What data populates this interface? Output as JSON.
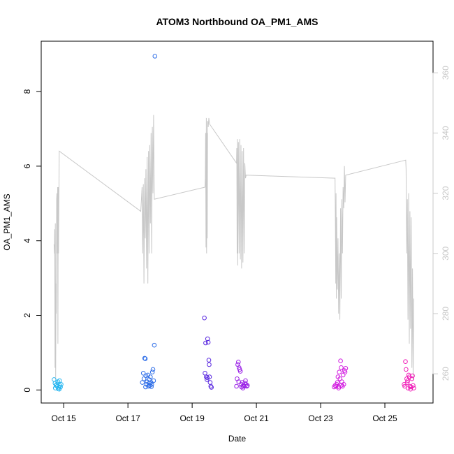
{
  "chart_data": {
    "type": "scatter",
    "title": "ATOM3 Northbound OA_PM1_AMS",
    "xlabel": "Date",
    "ylabel": "OA_PM1_AMS",
    "xlim": [
      14.3,
      26.5
    ],
    "ylim": [
      -0.35,
      9.35
    ],
    "y2lim": [
      250.3,
      370.5
    ],
    "x_ticks": [
      {
        "value": 15,
        "label": "Oct 15"
      },
      {
        "value": 17,
        "label": "Oct 17"
      },
      {
        "value": 19,
        "label": "Oct 19"
      },
      {
        "value": 21,
        "label": "Oct 21"
      },
      {
        "value": 23,
        "label": "Oct 23"
      },
      {
        "value": 25,
        "label": "Oct 25"
      }
    ],
    "y_ticks": [
      0,
      2,
      4,
      6,
      8
    ],
    "y2_ticks": [
      260,
      280,
      300,
      320,
      340,
      360
    ],
    "grid": false,
    "legend": "none",
    "colors": {
      "oct15": "#27b6f0",
      "oct17": "#2f6ee8",
      "oct19": "#5b2ae0",
      "oct20": "#9a22e6",
      "oct23": "#d21ee0",
      "oct25": "#f01eb8",
      "line": "#c8c8c8"
    },
    "series": [
      {
        "color_key": "oct15",
        "points": [
          [
            14.7,
            0.28
          ],
          [
            14.74,
            0.05
          ],
          [
            14.76,
            0.12
          ],
          [
            14.78,
            0.15
          ],
          [
            14.8,
            0.1
          ],
          [
            14.82,
            0.22
          ],
          [
            14.83,
            0.03
          ],
          [
            14.85,
            0.07
          ],
          [
            14.87,
            0.25
          ],
          [
            14.88,
            0.12
          ],
          [
            14.9,
            0.08
          ],
          [
            14.92,
            0.15
          ],
          [
            14.73,
            0.18
          ],
          [
            14.86,
            0.02
          ]
        ]
      },
      {
        "color_key": "oct17",
        "points": [
          [
            17.45,
            0.2
          ],
          [
            17.48,
            0.45
          ],
          [
            17.5,
            0.3
          ],
          [
            17.52,
            0.85
          ],
          [
            17.54,
            0.84
          ],
          [
            17.56,
            0.38
          ],
          [
            17.58,
            0.15
          ],
          [
            17.6,
            0.22
          ],
          [
            17.62,
            0.4
          ],
          [
            17.64,
            0.1
          ],
          [
            17.66,
            0.28
          ],
          [
            17.68,
            0.12
          ],
          [
            17.7,
            0.35
          ],
          [
            17.72,
            0.2
          ],
          [
            17.74,
            0.15
          ],
          [
            17.76,
            0.48
          ],
          [
            17.78,
            0.55
          ],
          [
            17.8,
            0.25
          ],
          [
            17.82,
            1.2
          ],
          [
            17.84,
            8.95
          ],
          [
            17.55,
            0.08
          ],
          [
            17.73,
            0.09
          ],
          [
            17.67,
            0.18
          ]
        ]
      },
      {
        "color_key": "oct19",
        "points": [
          [
            19.38,
            1.93
          ],
          [
            19.4,
            0.45
          ],
          [
            19.42,
            1.26
          ],
          [
            19.44,
            0.35
          ],
          [
            19.46,
            0.28
          ],
          [
            19.48,
            1.37
          ],
          [
            19.5,
            1.28
          ],
          [
            19.52,
            0.8
          ],
          [
            19.53,
            0.68
          ],
          [
            19.54,
            0.35
          ],
          [
            19.56,
            0.2
          ],
          [
            19.58,
            0.1
          ],
          [
            19.6,
            0.07
          ],
          [
            19.47,
            0.33
          ]
        ]
      },
      {
        "color_key": "oct20",
        "points": [
          [
            20.38,
            0.1
          ],
          [
            20.4,
            0.3
          ],
          [
            20.42,
            0.68
          ],
          [
            20.44,
            0.75
          ],
          [
            20.46,
            0.6
          ],
          [
            20.48,
            0.55
          ],
          [
            20.5,
            0.5
          ],
          [
            20.52,
            0.15
          ],
          [
            20.54,
            0.08
          ],
          [
            20.56,
            0.2
          ],
          [
            20.58,
            0.05
          ],
          [
            20.6,
            0.12
          ],
          [
            20.62,
            0.1
          ],
          [
            20.64,
            0.18
          ],
          [
            20.66,
            0.25
          ],
          [
            20.68,
            0.15
          ],
          [
            20.7,
            0.1
          ],
          [
            20.72,
            0.12
          ],
          [
            20.45,
            0.22
          ]
        ]
      },
      {
        "color_key": "oct23",
        "points": [
          [
            23.42,
            0.08
          ],
          [
            23.45,
            0.12
          ],
          [
            23.48,
            0.1
          ],
          [
            23.5,
            0.15
          ],
          [
            23.52,
            0.2
          ],
          [
            23.54,
            0.35
          ],
          [
            23.56,
            0.05
          ],
          [
            23.58,
            0.48
          ],
          [
            23.6,
            0.3
          ],
          [
            23.62,
            0.78
          ],
          [
            23.64,
            0.6
          ],
          [
            23.66,
            0.22
          ],
          [
            23.68,
            0.1
          ],
          [
            23.7,
            0.4
          ],
          [
            23.72,
            0.15
          ],
          [
            23.74,
            0.52
          ],
          [
            23.76,
            0.48
          ],
          [
            23.78,
            0.58
          ],
          [
            23.55,
            0.09
          ],
          [
            23.65,
            0.13
          ]
        ]
      },
      {
        "color_key": "oct25",
        "points": [
          [
            25.6,
            0.15
          ],
          [
            25.62,
            0.1
          ],
          [
            25.64,
            0.76
          ],
          [
            25.66,
            0.55
          ],
          [
            25.68,
            0.3
          ],
          [
            25.7,
            0.2
          ],
          [
            25.72,
            0.05
          ],
          [
            25.74,
            0.4
          ],
          [
            25.76,
            0.35
          ],
          [
            25.78,
            0.1
          ],
          [
            25.8,
            0.02
          ],
          [
            25.82,
            0.08
          ],
          [
            25.84,
            0.3
          ],
          [
            25.86,
            0.38
          ],
          [
            25.88,
            0.12
          ],
          [
            25.9,
            0.05
          ],
          [
            25.71,
            0.25
          ]
        ]
      }
    ],
    "secondary_line": {
      "axis": "right",
      "points": [
        [
          14.7,
          303
        ],
        [
          14.71,
          300
        ],
        [
          14.72,
          308
        ],
        [
          14.73,
          262
        ],
        [
          14.74,
          310
        ],
        [
          14.75,
          258
        ],
        [
          14.76,
          290
        ],
        [
          14.77,
          280
        ],
        [
          14.78,
          318
        ],
        [
          14.79,
          320
        ],
        [
          14.8,
          300
        ],
        [
          14.81,
          322
        ],
        [
          14.82,
          270
        ],
        [
          14.83,
          322
        ],
        [
          14.84,
          300
        ],
        [
          14.86,
          334
        ],
        [
          17.4,
          314
        ],
        [
          17.42,
          318
        ],
        [
          17.44,
          322
        ],
        [
          17.46,
          300
        ],
        [
          17.48,
          323
        ],
        [
          17.5,
          290
        ],
        [
          17.52,
          325
        ],
        [
          17.54,
          305
        ],
        [
          17.56,
          328
        ],
        [
          17.58,
          295
        ],
        [
          17.6,
          332
        ],
        [
          17.62,
          290
        ],
        [
          17.64,
          334
        ],
        [
          17.66,
          300
        ],
        [
          17.68,
          336
        ],
        [
          17.7,
          310
        ],
        [
          17.72,
          340
        ],
        [
          17.74,
          300
        ],
        [
          17.76,
          342
        ],
        [
          17.78,
          320
        ],
        [
          17.8,
          346
        ],
        [
          17.82,
          318
        ],
        [
          19.4,
          322
        ],
        [
          19.41,
          325
        ],
        [
          19.42,
          340
        ],
        [
          19.43,
          302
        ],
        [
          19.44,
          345
        ],
        [
          19.45,
          300
        ],
        [
          19.46,
          340
        ],
        [
          19.47,
          305
        ],
        [
          19.48,
          344
        ],
        [
          19.5,
          342
        ],
        [
          19.52,
          345
        ],
        [
          19.54,
          343
        ],
        [
          20.38,
          330
        ],
        [
          20.39,
          335
        ],
        [
          20.4,
          300
        ],
        [
          20.41,
          338
        ],
        [
          20.42,
          296
        ],
        [
          20.44,
          337
        ],
        [
          20.46,
          300
        ],
        [
          20.48,
          338
        ],
        [
          20.5,
          298
        ],
        [
          20.52,
          336
        ],
        [
          20.54,
          295
        ],
        [
          20.56,
          334
        ],
        [
          20.58,
          297
        ],
        [
          20.6,
          335
        ],
        [
          20.62,
          300
        ],
        [
          20.64,
          330
        ],
        [
          20.66,
          325
        ],
        [
          20.68,
          326
        ],
        [
          23.45,
          325
        ],
        [
          23.46,
          310
        ],
        [
          23.47,
          290
        ],
        [
          23.48,
          320
        ],
        [
          23.49,
          285
        ],
        [
          23.5,
          312
        ],
        [
          23.52,
          288
        ],
        [
          23.54,
          305
        ],
        [
          23.56,
          280
        ],
        [
          23.58,
          300
        ],
        [
          23.6,
          278
        ],
        [
          23.62,
          315
        ],
        [
          23.64,
          285
        ],
        [
          23.66,
          318
        ],
        [
          23.68,
          300
        ],
        [
          23.7,
          322
        ],
        [
          23.72,
          315
        ],
        [
          23.74,
          329
        ],
        [
          23.76,
          317
        ],
        [
          23.78,
          326
        ],
        [
          25.65,
          331
        ],
        [
          25.66,
          328
        ],
        [
          25.68,
          300
        ],
        [
          25.7,
          318
        ],
        [
          25.72,
          278
        ],
        [
          25.74,
          320
        ],
        [
          25.76,
          270
        ],
        [
          25.78,
          314
        ],
        [
          25.8,
          275
        ],
        [
          25.82,
          312
        ],
        [
          25.84,
          262
        ],
        [
          25.86,
          295
        ],
        [
          25.88,
          258
        ],
        [
          25.9,
          285
        ]
      ]
    }
  }
}
